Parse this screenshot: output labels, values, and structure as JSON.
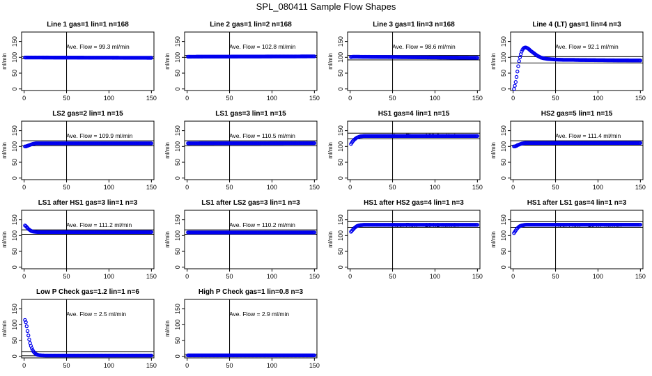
{
  "figure": {
    "title": "SPL_080411  Sample Flow Shapes"
  },
  "colors": {
    "points": "#0000ee",
    "lines": "#000000"
  },
  "chart_data": [
    {
      "type": "scatter",
      "title": "Line 1 gas=1 lin=1 n=168",
      "annotation": "Ave. Flow =  99.3  ml/min",
      "ylabel": "ml/min",
      "xlim": [
        0,
        150
      ],
      "ylim": [
        -5,
        180
      ],
      "xticks": [
        0,
        50,
        100,
        150
      ],
      "yticks": [
        0,
        50,
        100,
        150
      ],
      "vline": 50,
      "hlines": [
        102,
        96
      ],
      "series": [
        {
          "x": [
            1,
            150
          ],
          "y": [
            99.5,
            98.5
          ]
        }
      ]
    },
    {
      "type": "scatter",
      "title": "Line 2 gas=1 lin=2 n=168",
      "annotation": "Ave. Flow =  102.8  ml/min",
      "ylabel": "ml/min",
      "xlim": [
        0,
        150
      ],
      "ylim": [
        -5,
        180
      ],
      "xticks": [
        0,
        50,
        100,
        150
      ],
      "yticks": [
        0,
        50,
        100,
        150
      ],
      "vline": 50,
      "hlines": [
        106,
        100
      ],
      "series": [
        {
          "x": [
            1,
            150
          ],
          "y": [
            102,
            103
          ]
        }
      ]
    },
    {
      "type": "scatter",
      "title": "Line 3 gas=1 lin=3 n=168",
      "annotation": "Ave. Flow =  98.6  ml/min",
      "ylabel": "ml/min",
      "xlim": [
        0,
        150
      ],
      "ylim": [
        -5,
        180
      ],
      "xticks": [
        0,
        50,
        100,
        150
      ],
      "yticks": [
        0,
        50,
        100,
        150
      ],
      "vline": 50,
      "hlines": [
        106,
        92
      ],
      "series": [
        {
          "x": [
            1,
            3,
            150
          ],
          "y": [
            101,
            102,
            98.5
          ]
        }
      ]
    },
    {
      "type": "scatter",
      "title": "Line 4 (LT) gas=1 lin=4 n=3",
      "annotation": "Ave. Flow =  92.1  ml/min",
      "ylabel": "ml/min",
      "xlim": [
        0,
        150
      ],
      "ylim": [
        -5,
        180
      ],
      "xticks": [
        0,
        50,
        100,
        150
      ],
      "yticks": [
        0,
        50,
        100,
        150
      ],
      "vline": 50,
      "hlines": [
        102,
        82
      ],
      "series": [
        {
          "x": [
            1,
            2,
            3,
            4,
            5,
            6,
            7,
            8,
            9,
            10,
            11,
            12,
            13,
            14,
            15,
            16,
            17,
            18,
            19,
            20,
            22,
            24,
            26,
            28,
            30,
            33,
            36,
            40,
            45,
            50,
            60,
            70,
            80,
            100,
            120,
            150
          ],
          "y": [
            0,
            10,
            22,
            38,
            55,
            72,
            88,
            100,
            110,
            118,
            124,
            128,
            130,
            131,
            131,
            130,
            129,
            127,
            125,
            122,
            118,
            114,
            110,
            106,
            103,
            99,
            97,
            95,
            94,
            93,
            92,
            92,
            91.5,
            91,
            90.5,
            90
          ]
        }
      ]
    },
    {
      "type": "scatter",
      "title": "LS2 gas=2 lin=1 n=15",
      "annotation": "Ave. Flow =  109.9  ml/min",
      "ylabel": "ml/min",
      "xlim": [
        0,
        150
      ],
      "ylim": [
        -5,
        180
      ],
      "xticks": [
        0,
        50,
        100,
        150
      ],
      "yticks": [
        0,
        50,
        100,
        150
      ],
      "vline": 50,
      "hlines": [
        118,
        102
      ],
      "series": [
        {
          "x": [
            1,
            2,
            3,
            4,
            5,
            6,
            7,
            8,
            9,
            10,
            12,
            14,
            16,
            20,
            150
          ],
          "y": [
            100,
            100,
            101,
            102,
            103,
            104,
            105,
            106,
            107,
            108,
            109,
            110,
            110,
            110,
            110
          ]
        }
      ]
    },
    {
      "type": "scatter",
      "title": "LS1 gas=3 lin=1 n=15",
      "annotation": "Ave. Flow =  110.5  ml/min",
      "ylabel": "ml/min",
      "xlim": [
        0,
        150
      ],
      "ylim": [
        -5,
        180
      ],
      "xticks": [
        0,
        50,
        100,
        150
      ],
      "yticks": [
        0,
        50,
        100,
        150
      ],
      "vline": 50,
      "hlines": [
        118,
        102
      ],
      "series": [
        {
          "x": [
            1,
            150
          ],
          "y": [
            110,
            110.5
          ]
        }
      ]
    },
    {
      "type": "scatter",
      "title": "HS1 gas=4 lin=1 n=15",
      "annotation": "Ave. Flow =  133.2  ml/min",
      "ylabel": "ml/min",
      "xlim": [
        0,
        150
      ],
      "ylim": [
        -5,
        180
      ],
      "xticks": [
        0,
        50,
        100,
        150
      ],
      "yticks": [
        0,
        50,
        100,
        150
      ],
      "vline": 50,
      "hlines": [
        142,
        124
      ],
      "series": [
        {
          "x": [
            1,
            2,
            3,
            4,
            5,
            6,
            7,
            8,
            9,
            10,
            11,
            12,
            14,
            16,
            18,
            20,
            150
          ],
          "y": [
            108,
            112,
            116,
            119,
            122,
            124,
            126,
            128,
            129,
            130,
            131,
            132,
            132.5,
            133,
            133,
            133,
            133
          ]
        }
      ]
    },
    {
      "type": "scatter",
      "title": "HS2 gas=5 lin=1 n=15",
      "annotation": "Ave. Flow =  111.4  ml/min",
      "ylabel": "ml/min",
      "xlim": [
        0,
        150
      ],
      "ylim": [
        -5,
        180
      ],
      "xticks": [
        0,
        50,
        100,
        150
      ],
      "yticks": [
        0,
        50,
        100,
        150
      ],
      "vline": 50,
      "hlines": [
        118,
        104
      ],
      "series": [
        {
          "x": [
            1,
            2,
            3,
            4,
            5,
            6,
            7,
            8,
            9,
            10,
            12,
            14,
            16,
            20,
            150
          ],
          "y": [
            100,
            100,
            101,
            102,
            104,
            105,
            106,
            107,
            108,
            109,
            110,
            111,
            111,
            111,
            111
          ]
        }
      ]
    },
    {
      "type": "scatter",
      "title": "LS1 after HS1 gas=3 lin=1 n=3",
      "annotation": "Ave. Flow =  111.2  ml/min",
      "ylabel": "ml/min",
      "xlim": [
        0,
        150
      ],
      "ylim": [
        -5,
        180
      ],
      "xticks": [
        0,
        50,
        100,
        150
      ],
      "yticks": [
        0,
        50,
        100,
        150
      ],
      "vline": 50,
      "hlines": [
        118,
        104
      ],
      "series": [
        {
          "x": [
            1,
            2,
            3,
            4,
            5,
            6,
            7,
            8,
            9,
            10,
            12,
            14,
            16,
            20,
            150
          ],
          "y": [
            132,
            130,
            127,
            124,
            121,
            119,
            117,
            115,
            114,
            113,
            112,
            111.5,
            111,
            111,
            111
          ]
        }
      ]
    },
    {
      "type": "scatter",
      "title": "LS1 after LS2 gas=3 lin=1 n=3",
      "annotation": "Ave. Flow =  110.2  ml/min",
      "ylabel": "ml/min",
      "xlim": [
        0,
        150
      ],
      "ylim": [
        -5,
        180
      ],
      "xticks": [
        0,
        50,
        100,
        150
      ],
      "yticks": [
        0,
        50,
        100,
        150
      ],
      "vline": 50,
      "hlines": [
        118,
        104
      ],
      "series": [
        {
          "x": [
            1,
            150
          ],
          "y": [
            110,
            110
          ]
        }
      ]
    },
    {
      "type": "scatter",
      "title": "HS1 after HS2 gas=4 lin=1 n=3",
      "annotation": "Ave. Flow =  134.1  ml/min",
      "ylabel": "ml/min",
      "xlim": [
        0,
        150
      ],
      "ylim": [
        -5,
        180
      ],
      "xticks": [
        0,
        50,
        100,
        150
      ],
      "yticks": [
        0,
        50,
        100,
        150
      ],
      "vline": 50,
      "hlines": [
        144,
        126
      ],
      "series": [
        {
          "x": [
            1,
            2,
            3,
            4,
            5,
            6,
            7,
            8,
            9,
            10,
            12,
            14,
            16,
            20,
            150
          ],
          "y": [
            112,
            115,
            118,
            121,
            124,
            126,
            128,
            130,
            131,
            132,
            133,
            133.5,
            134,
            134,
            134
          ]
        }
      ]
    },
    {
      "type": "scatter",
      "title": "HS1 after LS1 gas=4 lin=1 n=3",
      "annotation": "Ave. Flow =  134.7  ml/min",
      "ylabel": "ml/min",
      "xlim": [
        0,
        150
      ],
      "ylim": [
        -5,
        180
      ],
      "xticks": [
        0,
        50,
        100,
        150
      ],
      "yticks": [
        0,
        50,
        100,
        150
      ],
      "vline": 50,
      "hlines": [
        144,
        126
      ],
      "series": [
        {
          "x": [
            1,
            2,
            3,
            4,
            5,
            6,
            7,
            8,
            9,
            10,
            12,
            14,
            16,
            20,
            150
          ],
          "y": [
            108,
            112,
            116,
            120,
            123,
            126,
            128,
            130,
            131,
            132,
            133,
            134,
            134.5,
            134.5,
            134.5
          ]
        }
      ]
    },
    {
      "type": "scatter",
      "title": "Low P Check gas=1.2 lin=1 n=6",
      "annotation": "Ave. Flow =  2.5  ml/min",
      "ylabel": "ml/min",
      "xlim": [
        0,
        150
      ],
      "ylim": [
        -5,
        180
      ],
      "xticks": [
        0,
        50,
        100,
        150
      ],
      "yticks": [
        0,
        50,
        100,
        150
      ],
      "vline": 50,
      "hlines": [
        15,
        2
      ],
      "series": [
        {
          "x": [
            1,
            2,
            3,
            4,
            5,
            6,
            7,
            8,
            9,
            10,
            11,
            12,
            13,
            14,
            15,
            16,
            17,
            18,
            20,
            22,
            25,
            30,
            150
          ],
          "y": [
            115,
            108,
            95,
            80,
            66,
            53,
            42,
            33,
            26,
            20,
            15,
            12,
            9,
            7,
            5.5,
            4.5,
            4,
            3.5,
            3,
            2.8,
            2.6,
            2.5,
            2.5
          ]
        }
      ]
    },
    {
      "type": "scatter",
      "title": "High P Check gas=1 lin=0.8 n=3",
      "annotation": "Ave. Flow =  2.9  ml/min",
      "ylabel": "ml/min",
      "xlim": [
        0,
        150
      ],
      "ylim": [
        -5,
        180
      ],
      "xticks": [
        0,
        50,
        100,
        150
      ],
      "yticks": [
        0,
        50,
        100,
        150
      ],
      "vline": 50,
      "hlines": [
        6,
        1
      ],
      "series": [
        {
          "x": [
            1,
            150
          ],
          "y": [
            3,
            3
          ]
        }
      ]
    }
  ]
}
